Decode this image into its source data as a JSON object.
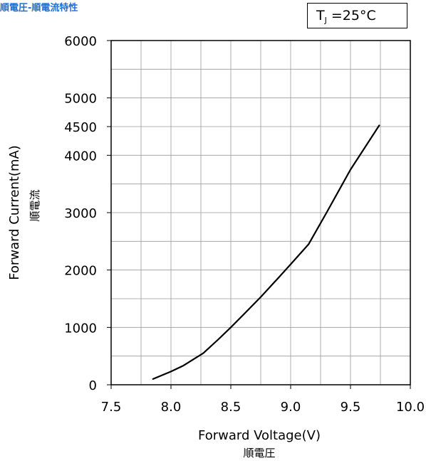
{
  "title": "順電圧-順電流特性",
  "condition": {
    "symbol": "T",
    "subscript": "J",
    "text": "=25°C"
  },
  "chart_data": {
    "type": "line",
    "xlabel": "Forward Voltage(V)",
    "xlabel_sub": "順電圧",
    "ylabel": "Forward Current(mA)",
    "ylabel_sub": "順電流",
    "xlim": [
      7.5,
      10.0
    ],
    "ylim": [
      0,
      6000
    ],
    "x_ticks": [
      7.5,
      8.0,
      8.5,
      9.0,
      9.5,
      10.0
    ],
    "x_tick_labels": [
      "7.5",
      "8.0",
      "8.5",
      "9.0",
      "9.5",
      "10.0"
    ],
    "y_ticks": [
      0,
      1000,
      2000,
      3000,
      4000,
      4500,
      5000,
      6000
    ],
    "y_tick_labels": [
      "0",
      "1000",
      "2000",
      "3000",
      "4000",
      "4500",
      "5000",
      "6000"
    ],
    "grid": true,
    "x_grid_step": 0.25,
    "y_grid_step": 500,
    "series": [
      {
        "color": "#000000",
        "x": [
          7.85,
          8.0,
          8.1,
          8.27,
          8.4,
          8.5,
          8.6,
          8.75,
          8.9,
          9.0,
          9.15,
          9.3,
          9.5,
          9.74
        ],
        "y": [
          100,
          230,
          330,
          550,
          800,
          1000,
          1210,
          1530,
          1870,
          2100,
          2450,
          3000,
          3750,
          4520
        ]
      }
    ]
  }
}
